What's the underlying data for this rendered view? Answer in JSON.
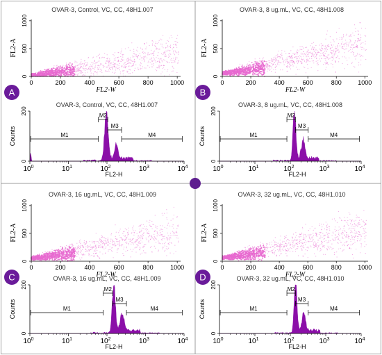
{
  "colors": {
    "scatter_dots": "#e86ad0",
    "histogram_fill": "#8b0fa8",
    "panel_badge": "#6a1b9a",
    "center_badge": "#5e1e8f",
    "axis": "#000000",
    "grid_lines": "#9e9e9e"
  },
  "center_badge_icon": "purple-circle-icon",
  "chart_data": [
    {
      "type": "scatter",
      "panel": "A",
      "title": "OVAR-3, Control, VC, CC, 48H1.007",
      "xlabel": "FL2-W",
      "ylabel": "FL2-A",
      "xlim": [
        0,
        1023
      ],
      "ylim": [
        0,
        1023
      ],
      "xticks": [
        "0",
        "200",
        "400",
        "600",
        "800",
        "1000"
      ],
      "yticks": [
        "0",
        "500",
        "1000"
      ],
      "points_source": "dense cloud rising from ~(0,20) to ~(1000,500), core below x=300"
    },
    {
      "type": "histogram",
      "panel": "A",
      "title": "OVAR-3, Control, VC, CC, 48H1.007",
      "xlabel": "FL2-H",
      "ylabel": "Counts",
      "xscale": "log",
      "xlim": [
        1,
        10000
      ],
      "ylim": [
        0,
        200
      ],
      "xticks": [
        "10",
        "10",
        "10",
        "10",
        "10"
      ],
      "xtick_exponents": [
        "0",
        "1",
        "2",
        "3",
        "4"
      ],
      "yticks": [
        "0",
        "200"
      ],
      "peaks": [
        {
          "x": 96,
          "height": 200,
          "width": 0.045
        },
        {
          "x": 175,
          "height": 60,
          "width": 0.04
        },
        {
          "x": 1.05,
          "height": 32,
          "width": 0.012
        }
      ],
      "markers": [
        {
          "label": "M1",
          "start": 1.05,
          "end": 60
        },
        {
          "label": "M2",
          "start": 60,
          "end": 105
        },
        {
          "label": "M3",
          "start": 105,
          "end": 240
        },
        {
          "label": "M4",
          "start": 240,
          "end": 9000
        }
      ]
    },
    {
      "type": "scatter",
      "panel": "B",
      "title": "OVAR-3, 8 ug.mL, VC, CC, 48H1.008",
      "xlabel": "FL2-W",
      "ylabel": "FL2-A",
      "xlim": [
        0,
        1023
      ],
      "ylim": [
        0,
        1023
      ],
      "xticks": [
        "0",
        "200",
        "400",
        "600",
        "800",
        "1000"
      ],
      "yticks": [
        "0",
        "500",
        "1000"
      ],
      "points_source": "dense cloud from ~(0,50) rising toward ~(1000,700), core near x=200-300"
    },
    {
      "type": "histogram",
      "panel": "B",
      "title": "OVAR-3, 8 ug.mL, VC, CC, 48H1.008",
      "xlabel": "FL2-H",
      "ylabel": "Counts",
      "xscale": "log",
      "xlim": [
        1,
        10000
      ],
      "ylim": [
        0,
        200
      ],
      "xticks": [
        "10",
        "10",
        "10",
        "10",
        "10"
      ],
      "xtick_exponents": [
        "0",
        "1",
        "2",
        "3",
        "4"
      ],
      "yticks": [
        "0",
        "200"
      ],
      "peaks": [
        {
          "x": 130,
          "height": 200,
          "width": 0.04
        },
        {
          "x": 230,
          "height": 75,
          "width": 0.05
        }
      ],
      "markers": [
        {
          "label": "M1",
          "start": 1.05,
          "end": 80
        },
        {
          "label": "M2",
          "start": 80,
          "end": 140
        },
        {
          "label": "M3",
          "start": 140,
          "end": 320
        },
        {
          "label": "M4",
          "start": 320,
          "end": 9000
        }
      ]
    },
    {
      "type": "scatter",
      "panel": "C",
      "title": "OVAR-3, 16 ug.mL, VC, CC, 48H1.009",
      "xlabel": "FL2-W",
      "ylabel": "FL2-A",
      "xlim": [
        0,
        1023
      ],
      "ylim": [
        0,
        1023
      ],
      "xticks": [
        "0",
        "200",
        "400",
        "600",
        "800",
        "1000"
      ],
      "yticks": [
        "0",
        "500",
        "1000"
      ],
      "points_source": "dense cloud from ~(0,50) rising toward ~(1000,650), core near x=200-250"
    },
    {
      "type": "histogram",
      "panel": "C",
      "title": "OVAR-3, 16 ug.mL, VC, CC, 48H1.009",
      "xlabel": "FL2-H",
      "ylabel": "Counts",
      "xscale": "log",
      "xlim": [
        1,
        10000
      ],
      "ylim": [
        0,
        200
      ],
      "xticks": [
        "10",
        "10",
        "10",
        "10",
        "10"
      ],
      "xtick_exponents": [
        "0",
        "1",
        "2",
        "3",
        "4"
      ],
      "yticks": [
        "0",
        "200"
      ],
      "peaks": [
        {
          "x": 150,
          "height": 200,
          "width": 0.04
        },
        {
          "x": 250,
          "height": 70,
          "width": 0.05
        }
      ],
      "markers": [
        {
          "label": "M1",
          "start": 1.05,
          "end": 80
        },
        {
          "label": "M2",
          "start": 80,
          "end": 140
        },
        {
          "label": "M3",
          "start": 140,
          "end": 320
        },
        {
          "label": "M4",
          "start": 320,
          "end": 9000
        }
      ]
    },
    {
      "type": "scatter",
      "panel": "D",
      "title": "OVAR-3, 32 ug.mL,  VC, CC, 48H1.010",
      "xlabel": "FL2-W",
      "ylabel": "FL2-A",
      "xlim": [
        0,
        1023
      ],
      "ylim": [
        0,
        1023
      ],
      "xticks": [
        "0",
        "200",
        "400",
        "600",
        "800",
        "1000"
      ],
      "yticks": [
        "0",
        "500",
        "1000"
      ],
      "points_source": "dense cloud from ~(0,60) rising toward ~(1000,650), core near x=200-300"
    },
    {
      "type": "histogram",
      "panel": "D",
      "title": "OVAR-3, 32 ug.mL, VC, CC, 48H1.010",
      "xlabel": "FL2-H",
      "ylabel": "Counts",
      "xscale": "log",
      "xlim": [
        1,
        10000
      ],
      "ylim": [
        0,
        200
      ],
      "xticks": [
        "10",
        "10",
        "10",
        "10",
        "10"
      ],
      "xtick_exponents": [
        "0",
        "1",
        "2",
        "3",
        "4"
      ],
      "yticks": [
        "0",
        "200"
      ],
      "peaks": [
        {
          "x": 140,
          "height": 200,
          "width": 0.04
        },
        {
          "x": 240,
          "height": 70,
          "width": 0.05
        }
      ],
      "markers": [
        {
          "label": "M1",
          "start": 1.05,
          "end": 80
        },
        {
          "label": "M2",
          "start": 80,
          "end": 140
        },
        {
          "label": "M3",
          "start": 140,
          "end": 320
        },
        {
          "label": "M4",
          "start": 320,
          "end": 9000
        }
      ]
    }
  ]
}
